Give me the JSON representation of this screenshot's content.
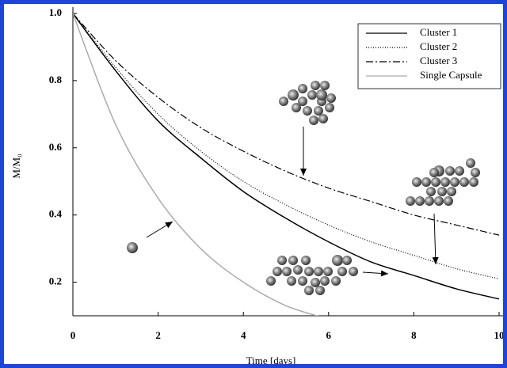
{
  "chart_data": {
    "type": "line",
    "xlabel": "Time [days]",
    "ylabel": "M/M₀",
    "x": [
      0,
      1,
      2,
      3,
      4,
      5,
      6,
      7,
      8,
      9,
      10
    ],
    "series": [
      {
        "name": "Cluster 1",
        "color": "#000000",
        "linestyle": "solid",
        "values": [
          1,
          0.83,
          0.68,
          0.57,
          0.47,
          0.39,
          0.32,
          0.26,
          0.22,
          0.18,
          0.15
        ]
      },
      {
        "name": "Cluster 2",
        "color": "#000000",
        "linestyle": "dotted",
        "values": [
          1,
          0.84,
          0.7,
          0.59,
          0.5,
          0.43,
          0.37,
          0.32,
          0.28,
          0.24,
          0.21
        ]
      },
      {
        "name": "Cluster 3",
        "color": "#000000",
        "linestyle": "dashdot",
        "values": [
          1,
          0.86,
          0.75,
          0.66,
          0.59,
          0.53,
          0.48,
          0.44,
          0.4,
          0.37,
          0.34
        ]
      },
      {
        "name": "Single Capsule",
        "color": "#aaaaaa",
        "linestyle": "solid",
        "values": [
          1,
          0.67,
          0.45,
          0.3,
          0.2,
          0.13,
          0.09,
          null,
          null,
          null,
          null
        ]
      }
    ],
    "xlim": [
      0,
      10
    ],
    "xticks": [
      0,
      2,
      4,
      6,
      8,
      10
    ],
    "ylim": [
      0.1,
      1.0
    ],
    "yticks": [
      0.2,
      0.4,
      0.6,
      0.8,
      {
        "value": 1.0,
        "label": "1.0"
      }
    ],
    "legend": "upper right"
  }
}
